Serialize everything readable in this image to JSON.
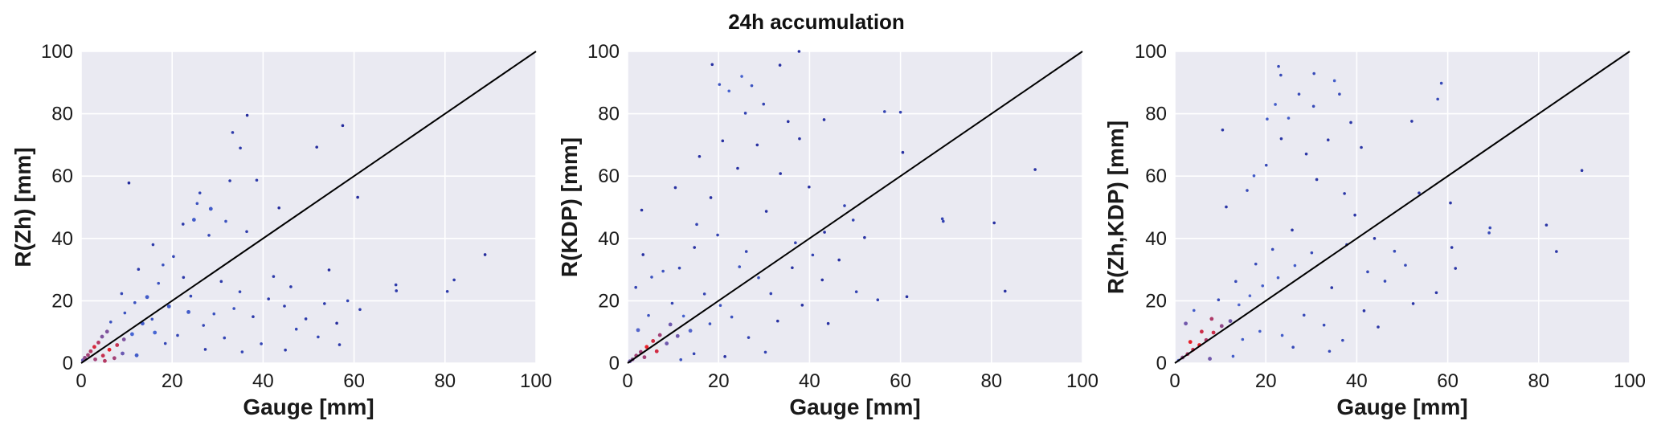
{
  "figure": {
    "suptitle": "24h accumulation"
  },
  "chart_data": [
    {
      "type": "scatter",
      "xlabel": "Gauge [mm]",
      "ylabel": "R(Zh) [mm]",
      "xlim": [
        0,
        100
      ],
      "ylim": [
        0,
        100
      ],
      "xticks": [
        0,
        20,
        40,
        60,
        80,
        100
      ],
      "yticks": [
        0,
        20,
        40,
        60,
        80,
        100
      ],
      "grid": true,
      "reference_line": [
        [
          0,
          0
        ],
        [
          100,
          100
        ]
      ],
      "density_colormap": [
        "#1a1a8c",
        "#4a6ad6",
        "#e8202a"
      ],
      "points": [
        [
          36.5,
          79.5
        ],
        [
          57.5,
          76.2
        ],
        [
          33.3,
          74.0
        ],
        [
          51.8,
          69.3
        ],
        [
          35.0,
          69.0
        ],
        [
          10.5,
          57.8
        ],
        [
          32.7,
          58.5
        ],
        [
          38.6,
          58.7
        ],
        [
          60.8,
          53.2
        ],
        [
          26.1,
          54.6
        ],
        [
          25.5,
          51.2
        ],
        [
          43.5,
          49.8
        ],
        [
          28.5,
          49.5
        ],
        [
          24.8,
          46.0
        ],
        [
          31.8,
          45.5
        ],
        [
          22.4,
          44.6
        ],
        [
          36.4,
          42.2
        ],
        [
          28.1,
          41.0
        ],
        [
          88.8,
          34.8
        ],
        [
          54.5,
          29.9
        ],
        [
          69.2,
          25.1
        ],
        [
          69.3,
          23.2
        ],
        [
          82.0,
          26.7
        ],
        [
          80.5,
          23.0
        ],
        [
          58.6,
          20.0
        ],
        [
          61.3,
          17.2
        ],
        [
          52.1,
          8.4
        ],
        [
          56.8,
          5.9
        ],
        [
          44.9,
          4.2
        ],
        [
          20.3,
          34.2
        ],
        [
          18.0,
          31.5
        ],
        [
          15.8,
          38.0
        ],
        [
          12.6,
          30.1
        ],
        [
          17.0,
          25.6
        ],
        [
          22.5,
          27.5
        ],
        [
          14.5,
          21.2
        ],
        [
          11.8,
          19.4
        ],
        [
          9.6,
          16.1
        ],
        [
          8.9,
          22.3
        ],
        [
          6.5,
          13.2
        ],
        [
          5.7,
          10.1
        ],
        [
          4.6,
          8.5
        ],
        [
          3.8,
          6.6
        ],
        [
          2.9,
          5.2
        ],
        [
          2.1,
          3.8
        ],
        [
          1.5,
          2.6
        ],
        [
          0.8,
          1.7
        ],
        [
          0.4,
          0.9
        ],
        [
          4.8,
          2.4
        ],
        [
          6.2,
          4.3
        ],
        [
          7.9,
          5.8
        ],
        [
          9.4,
          7.6
        ],
        [
          11.2,
          9.3
        ],
        [
          13.5,
          12.7
        ],
        [
          15.6,
          14.1
        ],
        [
          19.3,
          18.2
        ],
        [
          23.6,
          16.4
        ],
        [
          26.9,
          12.1
        ],
        [
          29.2,
          15.8
        ],
        [
          33.6,
          17.5
        ],
        [
          37.8,
          14.9
        ],
        [
          41.2,
          20.6
        ],
        [
          44.7,
          18.3
        ],
        [
          46.1,
          24.5
        ],
        [
          49.4,
          14.2
        ],
        [
          31.5,
          8.1
        ],
        [
          35.4,
          3.6
        ],
        [
          39.6,
          6.2
        ],
        [
          27.3,
          4.4
        ],
        [
          21.2,
          8.9
        ],
        [
          18.5,
          6.3
        ],
        [
          16.2,
          9.8
        ],
        [
          24.1,
          21.5
        ],
        [
          30.8,
          26.2
        ],
        [
          34.9,
          22.9
        ],
        [
          42.3,
          27.8
        ],
        [
          47.3,
          10.9
        ],
        [
          53.5,
          19.1
        ],
        [
          56.2,
          12.8
        ],
        [
          12.2,
          2.5
        ],
        [
          9.1,
          3.1
        ],
        [
          7.3,
          1.6
        ],
        [
          5.2,
          0.7
        ],
        [
          3.1,
          1.2
        ]
      ]
    },
    {
      "type": "scatter",
      "xlabel": "Gauge [mm]",
      "ylabel": "R(KDP) [mm]",
      "xlim": [
        0,
        100
      ],
      "ylim": [
        0,
        100
      ],
      "xticks": [
        0,
        20,
        40,
        60,
        80,
        100
      ],
      "yticks": [
        0,
        20,
        40,
        60,
        80,
        100
      ],
      "grid": true,
      "reference_line": [
        [
          0,
          0
        ],
        [
          100,
          100
        ]
      ],
      "density_colormap": [
        "#1a1a8c",
        "#4a6ad6",
        "#e8202a"
      ],
      "points": [
        [
          37.7,
          100.0
        ],
        [
          18.6,
          95.8
        ],
        [
          33.5,
          95.6
        ],
        [
          25.1,
          92.0
        ],
        [
          20.2,
          89.4
        ],
        [
          27.3,
          89.0
        ],
        [
          22.3,
          87.3
        ],
        [
          29.9,
          83.1
        ],
        [
          25.9,
          80.2
        ],
        [
          56.5,
          80.7
        ],
        [
          60.0,
          80.5
        ],
        [
          35.3,
          77.5
        ],
        [
          37.8,
          72.0
        ],
        [
          20.9,
          71.3
        ],
        [
          28.5,
          70.0
        ],
        [
          43.2,
          78.1
        ],
        [
          15.8,
          66.3
        ],
        [
          60.5,
          67.6
        ],
        [
          24.2,
          62.5
        ],
        [
          33.6,
          60.8
        ],
        [
          89.6,
          62.1
        ],
        [
          39.9,
          56.5
        ],
        [
          10.5,
          56.3
        ],
        [
          18.3,
          53.1
        ],
        [
          3.1,
          49.1
        ],
        [
          47.7,
          50.5
        ],
        [
          30.5,
          48.7
        ],
        [
          69.2,
          46.3
        ],
        [
          69.4,
          45.5
        ],
        [
          80.6,
          45.0
        ],
        [
          52.1,
          40.3
        ],
        [
          43.3,
          42.0
        ],
        [
          36.9,
          38.6
        ],
        [
          26.1,
          35.8
        ],
        [
          14.7,
          37.1
        ],
        [
          11.4,
          30.5
        ],
        [
          7.8,
          29.5
        ],
        [
          5.3,
          27.6
        ],
        [
          3.4,
          34.8
        ],
        [
          1.8,
          24.3
        ],
        [
          83.0,
          23.1
        ],
        [
          61.4,
          21.3
        ],
        [
          50.3,
          22.9
        ],
        [
          42.8,
          26.7
        ],
        [
          31.5,
          22.3
        ],
        [
          20.4,
          18.5
        ],
        [
          16.9,
          22.2
        ],
        [
          12.3,
          15.1
        ],
        [
          9.4,
          12.4
        ],
        [
          7.1,
          9.0
        ],
        [
          5.6,
          7.1
        ],
        [
          4.2,
          5.2
        ],
        [
          2.9,
          3.6
        ],
        [
          1.9,
          2.4
        ],
        [
          1.1,
          1.2
        ],
        [
          0.5,
          0.6
        ],
        [
          3.7,
          1.9
        ],
        [
          6.4,
          3.8
        ],
        [
          8.6,
          6.3
        ],
        [
          11.0,
          8.7
        ],
        [
          13.8,
          10.4
        ],
        [
          18.1,
          12.6
        ],
        [
          22.9,
          14.8
        ],
        [
          26.6,
          8.2
        ],
        [
          33.0,
          13.5
        ],
        [
          36.2,
          30.6
        ],
        [
          40.7,
          34.7
        ],
        [
          46.5,
          33.1
        ],
        [
          49.6,
          45.9
        ],
        [
          55.0,
          20.3
        ],
        [
          28.8,
          27.4
        ],
        [
          24.6,
          30.9
        ],
        [
          19.8,
          41.1
        ],
        [
          15.2,
          44.5
        ],
        [
          9.8,
          19.2
        ],
        [
          4.6,
          15.3
        ],
        [
          2.3,
          10.6
        ],
        [
          38.4,
          18.6
        ],
        [
          44.1,
          12.7
        ],
        [
          30.3,
          3.5
        ],
        [
          21.4,
          2.1
        ],
        [
          14.6,
          3.0
        ],
        [
          11.7,
          1.1
        ]
      ]
    },
    {
      "type": "scatter",
      "xlabel": "Gauge [mm]",
      "ylabel": "R(Zh,KDP) [mm]",
      "xlim": [
        0,
        100
      ],
      "ylim": [
        0,
        100
      ],
      "xticks": [
        0,
        20,
        40,
        60,
        80,
        100
      ],
      "yticks": [
        0,
        20,
        40,
        60,
        80,
        100
      ],
      "grid": true,
      "reference_line": [
        [
          0,
          0
        ],
        [
          100,
          100
        ]
      ],
      "density_colormap": [
        "#1a1a8c",
        "#4a6ad6",
        "#e8202a"
      ],
      "points": [
        [
          22.8,
          95.2
        ],
        [
          23.3,
          92.4
        ],
        [
          30.6,
          92.9
        ],
        [
          35.1,
          90.6
        ],
        [
          27.3,
          86.3
        ],
        [
          58.6,
          89.8
        ],
        [
          22.1,
          83.0
        ],
        [
          36.2,
          86.3
        ],
        [
          25.0,
          78.6
        ],
        [
          57.8,
          84.7
        ],
        [
          30.5,
          82.4
        ],
        [
          20.3,
          78.3
        ],
        [
          52.1,
          77.6
        ],
        [
          10.5,
          74.8
        ],
        [
          38.7,
          77.2
        ],
        [
          33.7,
          71.6
        ],
        [
          23.4,
          72.0
        ],
        [
          41.0,
          69.2
        ],
        [
          28.9,
          67.1
        ],
        [
          20.1,
          63.5
        ],
        [
          17.4,
          60.1
        ],
        [
          31.2,
          58.9
        ],
        [
          60.6,
          51.4
        ],
        [
          15.9,
          55.4
        ],
        [
          37.3,
          54.4
        ],
        [
          53.7,
          54.6
        ],
        [
          11.3,
          50.1
        ],
        [
          89.5,
          61.8
        ],
        [
          69.3,
          43.4
        ],
        [
          69.1,
          41.8
        ],
        [
          81.7,
          44.3
        ],
        [
          83.9,
          35.8
        ],
        [
          60.9,
          37.1
        ],
        [
          61.7,
          30.4
        ],
        [
          57.5,
          22.6
        ],
        [
          52.4,
          19.1
        ],
        [
          48.3,
          35.9
        ],
        [
          43.9,
          40.0
        ],
        [
          42.4,
          29.3
        ],
        [
          37.8,
          38.0
        ],
        [
          34.5,
          24.2
        ],
        [
          30.1,
          35.4
        ],
        [
          26.4,
          31.3
        ],
        [
          22.7,
          27.4
        ],
        [
          19.3,
          24.8
        ],
        [
          16.5,
          21.6
        ],
        [
          14.1,
          18.7
        ],
        [
          12.2,
          13.5
        ],
        [
          10.3,
          11.9
        ],
        [
          8.5,
          9.8
        ],
        [
          6.9,
          7.4
        ],
        [
          5.4,
          5.8
        ],
        [
          4.0,
          4.3
        ],
        [
          2.8,
          2.9
        ],
        [
          1.7,
          1.8
        ],
        [
          0.8,
          0.9
        ],
        [
          3.4,
          6.8
        ],
        [
          5.9,
          10.1
        ],
        [
          8.1,
          14.2
        ],
        [
          9.6,
          20.3
        ],
        [
          4.2,
          16.9
        ],
        [
          2.4,
          12.7
        ],
        [
          13.4,
          26.2
        ],
        [
          17.8,
          31.8
        ],
        [
          21.5,
          36.5
        ],
        [
          25.8,
          42.7
        ],
        [
          14.9,
          7.6
        ],
        [
          18.7,
          10.2
        ],
        [
          23.6,
          8.9
        ],
        [
          28.4,
          15.4
        ],
        [
          32.8,
          12.2
        ],
        [
          36.9,
          7.3
        ],
        [
          41.6,
          16.8
        ],
        [
          46.2,
          26.3
        ],
        [
          50.7,
          31.4
        ],
        [
          39.6,
          47.5
        ],
        [
          34.0,
          3.8
        ],
        [
          26.0,
          5.1
        ],
        [
          12.8,
          2.2
        ],
        [
          7.7,
          1.4
        ],
        [
          44.7,
          11.6
        ]
      ]
    }
  ]
}
